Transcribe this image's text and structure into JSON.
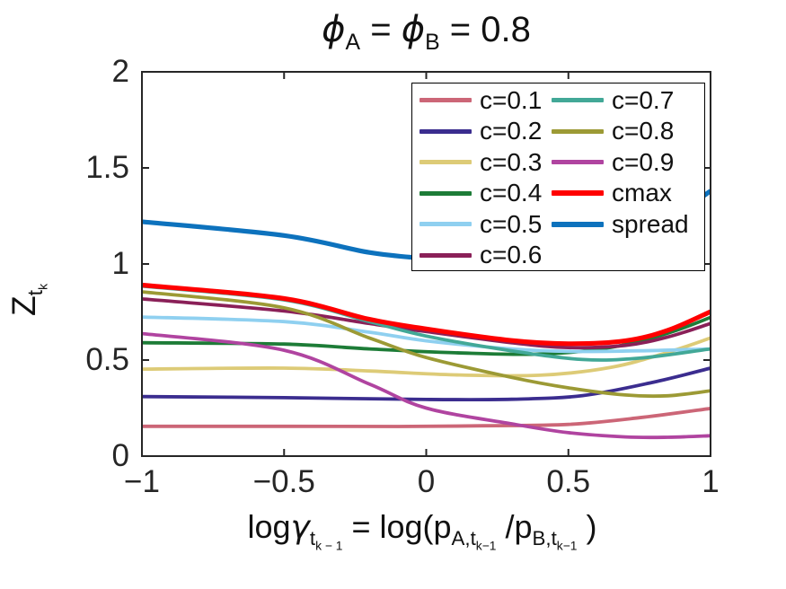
{
  "title": {
    "phi1": "ϕ",
    "subA": "A",
    "eq1": " = ",
    "phi2": "ϕ",
    "subB": "B",
    "eq2": " = 0.8"
  },
  "ylabel": {
    "main": "Z",
    "sub": "t",
    "subsub": "k"
  },
  "xlabel": {
    "pre": "log",
    "gamma": "γ",
    "gsub": "t",
    "gsubsub": "k − 1",
    "mid": " = log(p",
    "asub": "A,t",
    "asubsub": "k−1",
    "slash": " /p",
    "bsub": "B,t",
    "bsubsub": "k−1",
    "close": " )"
  },
  "chart_data": {
    "type": "line",
    "title": "phi_A = phi_B = 0.8",
    "xlabel": "log gamma_{t_{k-1}} = log(p_{A,t_{k-1}} / p_{B,t_{k-1}})",
    "ylabel": "Z_{t_k}",
    "xlim": [
      -1,
      1
    ],
    "ylim": [
      0,
      2
    ],
    "xticks": [
      -1,
      -0.5,
      0,
      0.5,
      1
    ],
    "xtick_labels": [
      "−1",
      "−0.5",
      "0",
      "0.5",
      "1"
    ],
    "yticks": [
      0,
      0.5,
      1,
      1.5,
      2
    ],
    "ytick_labels": [
      "0",
      "0.5",
      "1",
      "1.5",
      "2"
    ],
    "grid": false,
    "legend_position": "upper-right-inside",
    "axis_color": "#262626",
    "series": [
      {
        "name": "c=0.1",
        "color": "#cc6677",
        "width": 3.8,
        "thick": false,
        "points": [
          [
            -1,
            0.155
          ],
          [
            -0.5,
            0.155
          ],
          [
            -0.1,
            0.154
          ],
          [
            0.2,
            0.158
          ],
          [
            0.5,
            0.165
          ],
          [
            0.75,
            0.2
          ],
          [
            1,
            0.248
          ]
        ]
      },
      {
        "name": "c=0.2",
        "color": "#3b2d8f",
        "width": 3.8,
        "thick": false,
        "points": [
          [
            -1,
            0.31
          ],
          [
            -0.5,
            0.304
          ],
          [
            0,
            0.295
          ],
          [
            0.3,
            0.296
          ],
          [
            0.55,
            0.315
          ],
          [
            0.8,
            0.385
          ],
          [
            1,
            0.458
          ]
        ]
      },
      {
        "name": "c=0.3",
        "color": "#ddcb77",
        "width": 3.8,
        "thick": false,
        "points": [
          [
            -1,
            0.453
          ],
          [
            -0.5,
            0.458
          ],
          [
            -0.2,
            0.443
          ],
          [
            0.1,
            0.423
          ],
          [
            0.4,
            0.421
          ],
          [
            0.65,
            0.462
          ],
          [
            0.85,
            0.54
          ],
          [
            1,
            0.615
          ]
        ]
      },
      {
        "name": "c=0.4",
        "color": "#1d7c37",
        "width": 3.8,
        "thick": false,
        "points": [
          [
            -1,
            0.59
          ],
          [
            -0.5,
            0.583
          ],
          [
            -0.2,
            0.558
          ],
          [
            0.1,
            0.538
          ],
          [
            0.4,
            0.531
          ],
          [
            0.65,
            0.566
          ],
          [
            0.85,
            0.64
          ],
          [
            1,
            0.722
          ]
        ]
      },
      {
        "name": "c=0.5",
        "color": "#8fd0f0",
        "width": 3.8,
        "thick": false,
        "points": [
          [
            -1,
            0.724
          ],
          [
            -0.5,
            0.7
          ],
          [
            -0.2,
            0.645
          ],
          [
            0,
            0.6
          ],
          [
            0.3,
            0.558
          ],
          [
            0.5,
            0.545
          ],
          [
            0.75,
            0.548
          ],
          [
            1,
            0.558
          ]
        ]
      },
      {
        "name": "c=0.6",
        "color": "#8a2058",
        "width": 3.8,
        "thick": false,
        "points": [
          [
            -1,
            0.818
          ],
          [
            -0.5,
            0.755
          ],
          [
            -0.2,
            0.69
          ],
          [
            0,
            0.648
          ],
          [
            0.3,
            0.59
          ],
          [
            0.5,
            0.565
          ],
          [
            0.7,
            0.576
          ],
          [
            0.85,
            0.62
          ],
          [
            1,
            0.69
          ]
        ]
      },
      {
        "name": "c=0.7",
        "color": "#42a897",
        "width": 3.8,
        "thick": false,
        "points": [
          [
            -1,
            0.885
          ],
          [
            -0.5,
            0.813
          ],
          [
            -0.2,
            0.7
          ],
          [
            0,
            0.625
          ],
          [
            0.3,
            0.548
          ],
          [
            0.55,
            0.503
          ],
          [
            0.75,
            0.51
          ],
          [
            1,
            0.558
          ]
        ]
      },
      {
        "name": "c=0.8",
        "color": "#9c9a35",
        "width": 3.8,
        "thick": false,
        "points": [
          [
            -1,
            0.855
          ],
          [
            -0.5,
            0.772
          ],
          [
            -0.2,
            0.615
          ],
          [
            0,
            0.513
          ],
          [
            0.3,
            0.41
          ],
          [
            0.5,
            0.355
          ],
          [
            0.7,
            0.318
          ],
          [
            0.85,
            0.314
          ],
          [
            1,
            0.34
          ]
        ]
      },
      {
        "name": "c=0.9",
        "color": "#b044a0",
        "width": 3.8,
        "thick": false,
        "points": [
          [
            -1,
            0.638
          ],
          [
            -0.5,
            0.551
          ],
          [
            -0.2,
            0.375
          ],
          [
            0,
            0.25
          ],
          [
            0.3,
            0.168
          ],
          [
            0.5,
            0.122
          ],
          [
            0.7,
            0.1
          ],
          [
            0.85,
            0.098
          ],
          [
            1,
            0.106
          ]
        ]
      },
      {
        "name": "cmax",
        "color": "#ff0000",
        "width": 5.2,
        "thick": true,
        "points": [
          [
            -1,
            0.89
          ],
          [
            -0.5,
            0.82
          ],
          [
            -0.2,
            0.712
          ],
          [
            0,
            0.662
          ],
          [
            0.3,
            0.602
          ],
          [
            0.5,
            0.585
          ],
          [
            0.7,
            0.6
          ],
          [
            0.85,
            0.655
          ],
          [
            1,
            0.752
          ]
        ]
      },
      {
        "name": "spread",
        "color": "#0d72bd",
        "width": 5.2,
        "thick": true,
        "points": [
          [
            -1,
            1.22
          ],
          [
            -0.5,
            1.148
          ],
          [
            -0.2,
            1.06
          ],
          [
            0,
            1.028
          ],
          [
            0.2,
            1.005
          ],
          [
            0.5,
            1.06
          ],
          [
            0.75,
            1.17
          ],
          [
            0.9,
            1.28
          ],
          [
            1,
            1.38
          ]
        ]
      }
    ]
  }
}
